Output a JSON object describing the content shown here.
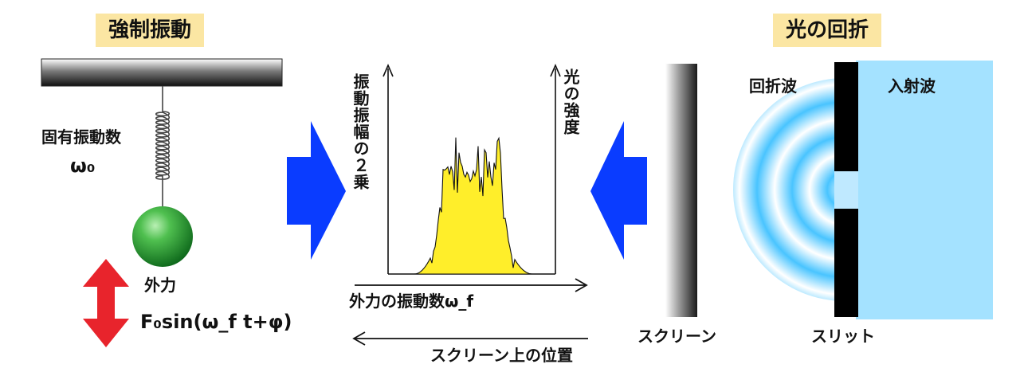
{
  "left": {
    "title": "強制振動",
    "natural_freq_label": "固有振動数",
    "natural_freq_symbol": "ω₀",
    "external_force_label": "外力",
    "external_force_formula": "F₀sin(ω_f t+φ)"
  },
  "center": {
    "y_axis_left": "振動振幅の２乗",
    "y_axis_right": "光の強度",
    "x_axis_top": "外力の振動数ω_f",
    "x_axis_bottom": "スクリーン上の位置"
  },
  "right": {
    "title": "光の回折",
    "diffracted_wave_label": "回折波",
    "incident_wave_label": "入射波",
    "screen_label": "スクリーン",
    "slit_label": "スリット"
  },
  "colors": {
    "title_bg": "#fbe6a3",
    "arrow_blue": "#0a3cff",
    "arrow_red": "#e8242c",
    "peak_fill": "#ffee2a",
    "ball_green": "#2e9a35",
    "wave_cyan": "#55ccff"
  }
}
